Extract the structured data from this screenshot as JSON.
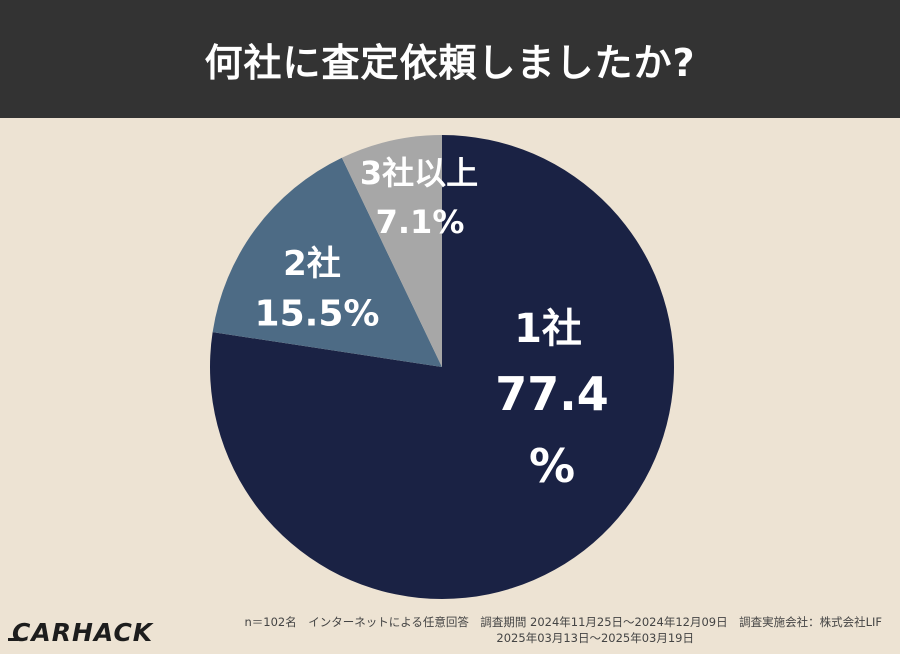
{
  "header": {
    "title": "何社に査定依頼しましたか?"
  },
  "chart_data": {
    "type": "pie",
    "slices": [
      {
        "label": "1社",
        "value": 77.4,
        "value_label_line1": "77.4",
        "value_label_line2": "%",
        "color": "#1a2244"
      },
      {
        "label": "2社",
        "value": 15.5,
        "value_label": "15.5%",
        "color": "#4d6b85"
      },
      {
        "label": "3社以上",
        "value": 7.1,
        "value_label": "7.1%",
        "color": "#a7a7a7"
      }
    ],
    "start": "12 o'clock",
    "direction": "clockwise"
  },
  "footer": {
    "logo": "CARHACK",
    "note_line1": "n＝102名　インターネットによる任意回答　調査期間 2024年11月25日〜2024年12月09日　調査実施会社：株式会社LIF",
    "note_line2": "2025年03月13日〜2025年03月19日"
  },
  "colors": {
    "header_bg": "#333333",
    "page_bg": "#ede3d3"
  }
}
